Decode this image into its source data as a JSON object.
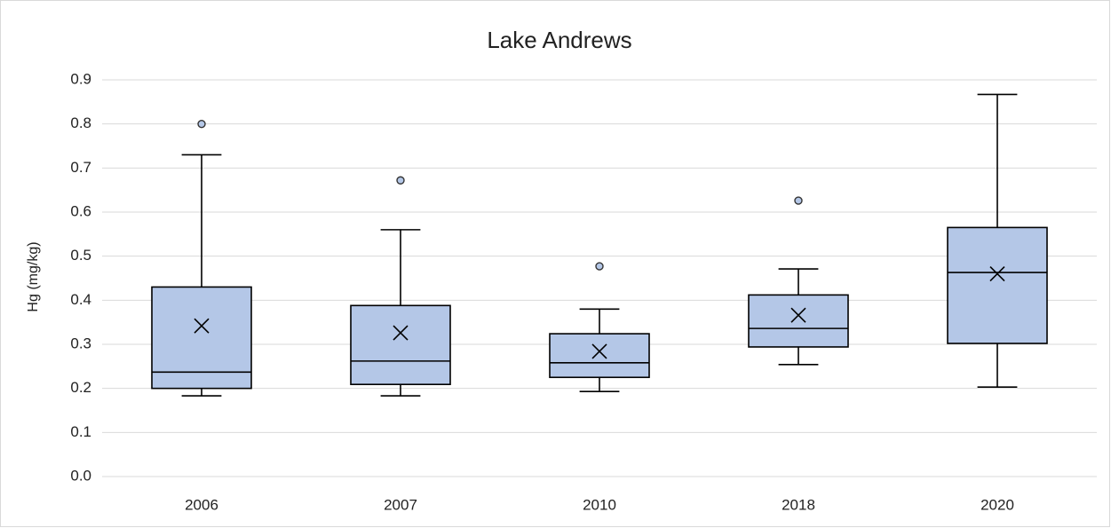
{
  "chart_data": {
    "type": "box",
    "title": "Lake Andrews",
    "y_label": "Hg (mg/kg)",
    "categories": [
      "2006",
      "2007",
      "2010",
      "2018",
      "2020"
    ],
    "min": [
      0.183,
      0.183,
      0.193,
      0.254,
      0.203
    ],
    "q1": [
      0.2,
      0.209,
      0.225,
      0.294,
      0.302
    ],
    "median": [
      0.237,
      0.262,
      0.258,
      0.336,
      0.463
    ],
    "q3": [
      0.43,
      0.388,
      0.324,
      0.412,
      0.565
    ],
    "max": [
      0.73,
      0.56,
      0.38,
      0.471,
      0.867
    ],
    "mean": [
      0.342,
      0.326,
      0.284,
      0.366,
      0.46
    ],
    "outliers": [
      [
        0.8
      ],
      [
        0.672
      ],
      [
        0.477
      ],
      [
        0.626
      ],
      []
    ],
    "color": "#b4c7e7",
    "ylim": [
      0,
      0.9
    ],
    "yticks": [
      {
        "value": 0,
        "label": "0.0"
      },
      0.1,
      0.2,
      0.3,
      0.4,
      0.5,
      0.6,
      0.7,
      0.8,
      0.9
    ],
    "grid": true
  }
}
